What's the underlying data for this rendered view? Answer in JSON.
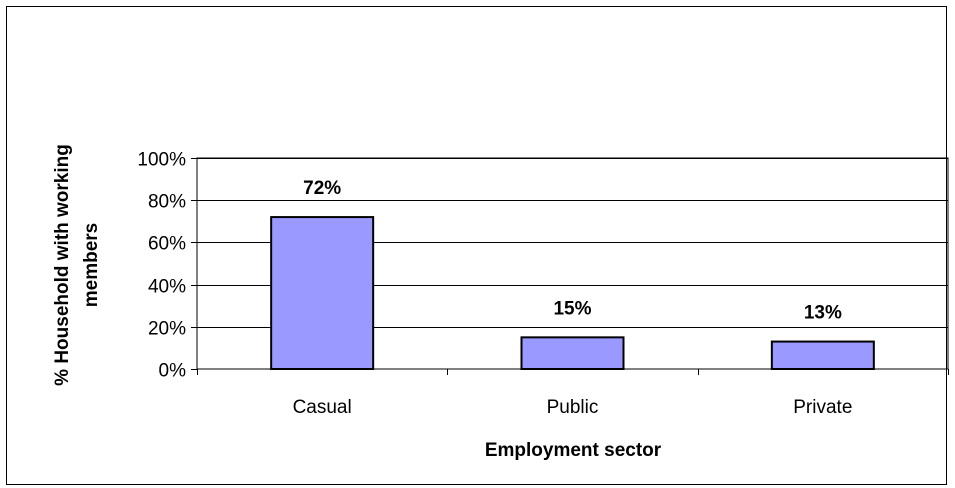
{
  "chart_data": {
    "type": "bar",
    "title": "",
    "xlabel": "Employment sector",
    "ylabel": [
      "% Household with working",
      "members"
    ],
    "categories": [
      "Casual",
      "Public",
      "Private"
    ],
    "values": [
      72,
      15,
      13
    ],
    "data_labels": [
      "72%",
      "15%",
      "13%"
    ],
    "yticks": [
      0,
      20,
      40,
      60,
      80,
      100
    ],
    "ytick_labels": [
      "0%",
      "20%",
      "40%",
      "60%",
      "80%",
      "100%"
    ],
    "ylim": [
      0,
      100
    ],
    "grid": true,
    "legend": false,
    "bar_color": "#9999ff",
    "bar_stroke": "#000000",
    "plot_background": "#ffffff"
  }
}
